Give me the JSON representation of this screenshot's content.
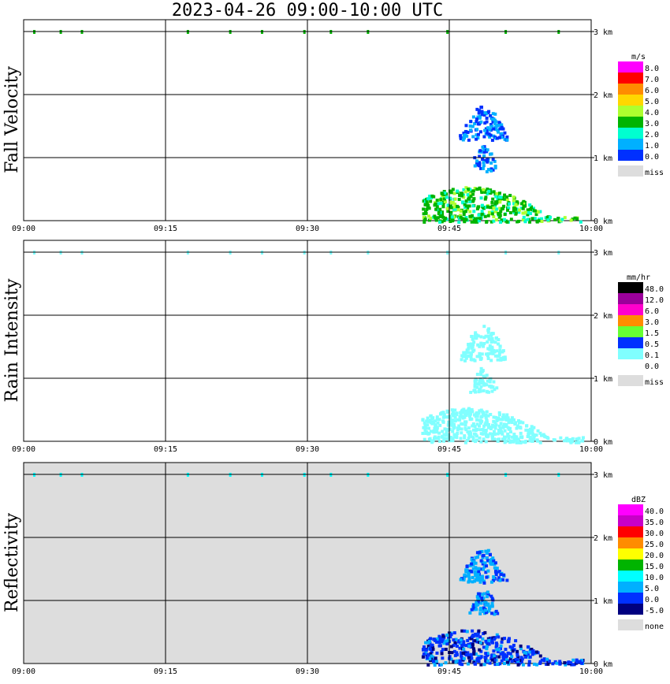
{
  "title": "2023-04-26  09:00-10:00 UTC",
  "chart_data": {
    "type": "heatmap",
    "x_ticks": [
      "09:00",
      "09:15",
      "09:30",
      "09:45",
      "10:00"
    ],
    "xlim": [
      "09:00",
      "10:00"
    ],
    "y_ticks": [
      "0 km",
      "1 km",
      "2 km",
      "3 km"
    ],
    "ylim_km": [
      0,
      3.0
    ],
    "grid": true,
    "panels": [
      {
        "id": "fall_velocity",
        "ylabel": "Fall Velocity",
        "unit": "m/s",
        "background": "#ffffff",
        "scale": [
          {
            "label": "8.0",
            "color": "#ff00ff"
          },
          {
            "label": "7.0",
            "color": "#ff0000"
          },
          {
            "label": "6.0",
            "color": "#ff8c00"
          },
          {
            "label": "5.0",
            "color": "#ffd700"
          },
          {
            "label": "4.0",
            "color": "#adff2f"
          },
          {
            "label": "3.0",
            "color": "#00b400"
          },
          {
            "label": "2.0",
            "color": "#00ffd0"
          },
          {
            "label": "1.0",
            "color": "#00b0ff"
          },
          {
            "label": "0.0",
            "color": "#0030ff"
          },
          {
            "label": "miss",
            "color": "#dddddd"
          }
        ]
      },
      {
        "id": "rain_intensity",
        "ylabel": "Rain Intensity",
        "unit": "mm/hr",
        "background": "#ffffff",
        "scale": [
          {
            "label": "48.0",
            "color": "#000000"
          },
          {
            "label": "12.0",
            "color": "#9a009a"
          },
          {
            "label": "6.0",
            "color": "#ff00cc"
          },
          {
            "label": "3.0",
            "color": "#ff8c00"
          },
          {
            "label": "1.5",
            "color": "#66ff33"
          },
          {
            "label": "0.5",
            "color": "#0030ff"
          },
          {
            "label": "0.1",
            "color": "#80ffff"
          },
          {
            "label": "0.0",
            "color": "#ffffff"
          },
          {
            "label": "miss",
            "color": "#dddddd"
          }
        ]
      },
      {
        "id": "reflectivity",
        "ylabel": "Reflectivity",
        "unit": "dBZ",
        "background": "#dddddd",
        "scale": [
          {
            "label": "40.0",
            "color": "#ff00ff"
          },
          {
            "label": "35.0",
            "color": "#c800c8"
          },
          {
            "label": "30.0",
            "color": "#ff0000"
          },
          {
            "label": "25.0",
            "color": "#ff8c00"
          },
          {
            "label": "20.0",
            "color": "#ffff00"
          },
          {
            "label": "15.0",
            "color": "#00b400"
          },
          {
            "label": "10.0",
            "color": "#00ffff"
          },
          {
            "label": "5.0",
            "color": "#00b0ff"
          },
          {
            "label": "0.0",
            "color": "#0030ff"
          },
          {
            "label": "-5.0",
            "color": "#000080"
          },
          {
            "label": "none",
            "color": "#dddddd"
          }
        ]
      }
    ],
    "echo_regions": [
      {
        "name": "surface rain band",
        "x_start": "09:42",
        "x_end": "09:59",
        "z_start_km": 0.0,
        "z_end_km": 0.55
      },
      {
        "name": "upper echo",
        "x_start": "09:46",
        "x_end": "09:51",
        "z_start_km": 1.3,
        "z_end_km": 1.85
      },
      {
        "name": "mid echo",
        "x_start": "09:47",
        "x_end": "09:50",
        "z_start_km": 0.8,
        "z_end_km": 1.2
      },
      {
        "name": "clutter near 3 km",
        "x_start": "09:01",
        "x_end": "09:57",
        "z_start_km": 2.95,
        "z_end_km": 3.0
      }
    ]
  }
}
